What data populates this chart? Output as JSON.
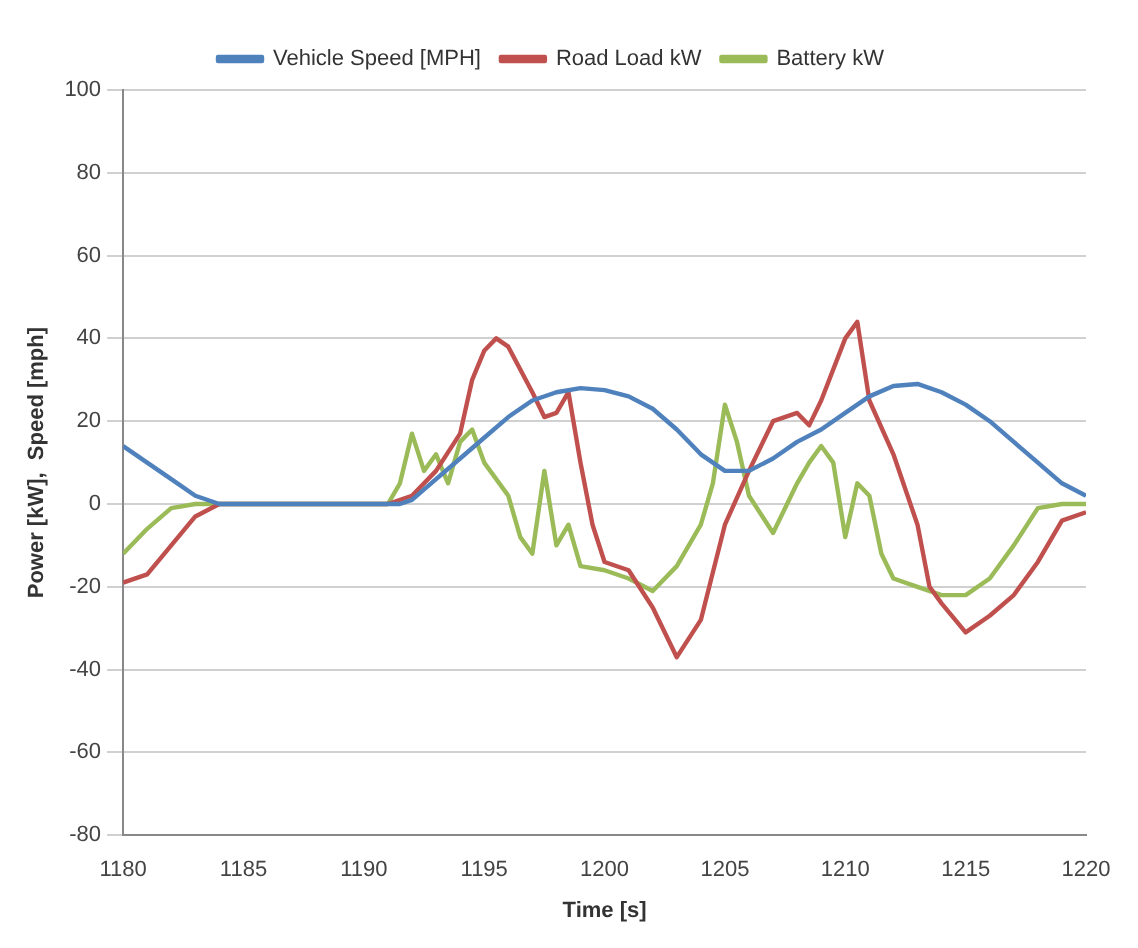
{
  "chart_data": {
    "type": "line",
    "xlabel": "Time [s]",
    "ylabel": "Power [kW],  Speed [mph]",
    "xlim": [
      1180,
      1220
    ],
    "xticks": [
      1180,
      1185,
      1190,
      1195,
      1200,
      1205,
      1210,
      1215,
      1220
    ],
    "ylim": [
      -80,
      100
    ],
    "yticks": [
      -80,
      -60,
      -40,
      -20,
      0,
      20,
      40,
      60,
      80,
      100
    ],
    "grid": "y",
    "legend": "top",
    "marker": "none",
    "line_style": "solid",
    "series": [
      {
        "name": "Vehicle Speed [MPH]",
        "color": "#4f81bd",
        "x": [
          1180,
          1181,
          1182,
          1183,
          1184,
          1188,
          1191.5,
          1192,
          1193,
          1194,
          1195,
          1196,
          1197,
          1198,
          1199,
          1200,
          1201,
          1202,
          1203,
          1204,
          1205,
          1206,
          1207,
          1208,
          1209,
          1210,
          1211,
          1212,
          1213,
          1214,
          1215,
          1216,
          1217,
          1218,
          1219,
          1220
        ],
        "values": [
          14,
          10,
          6,
          2,
          0,
          0,
          0,
          1,
          6,
          11,
          16,
          21,
          25,
          27,
          28,
          27.5,
          26,
          23,
          18,
          12,
          8,
          8,
          11,
          15,
          18,
          22,
          26,
          28.5,
          29,
          27,
          24,
          20,
          15,
          10,
          5,
          2
        ]
      },
      {
        "name": "Road Load kW",
        "color": "#c0504d",
        "x": [
          1180,
          1181,
          1182,
          1183,
          1184,
          1188,
          1191,
          1192,
          1193,
          1194,
          1194.5,
          1195,
          1195.5,
          1196,
          1197,
          1197.5,
          1198,
          1198.5,
          1199,
          1199.5,
          1200,
          1201,
          1202,
          1203,
          1204,
          1205,
          1206,
          1207,
          1208,
          1208.5,
          1209,
          1210,
          1210.5,
          1211,
          1212,
          1213,
          1213.5,
          1214,
          1215,
          1216,
          1217,
          1218,
          1219,
          1220
        ],
        "values": [
          -19,
          -17,
          -10,
          -3,
          0,
          0,
          0,
          2,
          8,
          17,
          30,
          37,
          40,
          38,
          27,
          21,
          22,
          27,
          10,
          -5,
          -14,
          -16,
          -25,
          -37,
          -28,
          -5,
          8,
          20,
          22,
          19,
          25,
          40,
          44,
          25,
          12,
          -5,
          -20,
          -24,
          -31,
          -27,
          -22,
          -14,
          -4,
          -2
        ]
      },
      {
        "name": "Battery kW",
        "color": "#9bbb59",
        "x": [
          1180,
          1181,
          1182,
          1183,
          1188,
          1191,
          1191.5,
          1192,
          1192.5,
          1193,
          1193.5,
          1194,
          1194.5,
          1195,
          1196,
          1196.5,
          1197,
          1197.5,
          1198,
          1198.5,
          1199,
          1200,
          1201,
          1202,
          1203,
          1204,
          1204.5,
          1205,
          1205.5,
          1206,
          1207,
          1208,
          1208.5,
          1209,
          1209.5,
          1210,
          1210.5,
          1211,
          1211.5,
          1212,
          1213,
          1214,
          1215,
          1216,
          1217,
          1218,
          1219,
          1220
        ],
        "values": [
          -12,
          -6,
          -1,
          0,
          0,
          0,
          5,
          17,
          8,
          12,
          5,
          15,
          18,
          10,
          2,
          -8,
          -12,
          8,
          -10,
          -5,
          -15,
          -16,
          -18,
          -21,
          -15,
          -5,
          5,
          24,
          15,
          2,
          -7,
          5,
          10,
          14,
          10,
          -8,
          5,
          2,
          -12,
          -18,
          -20,
          -22,
          -22,
          -18,
          -10,
          -1,
          0,
          0
        ]
      }
    ]
  }
}
